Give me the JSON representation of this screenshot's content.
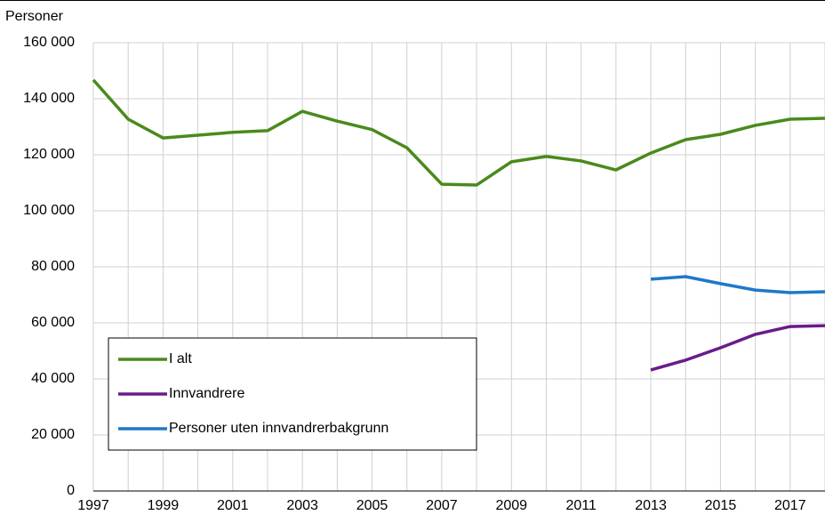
{
  "chart_data": {
    "type": "line",
    "y_axis_label": "Personer",
    "x": [
      1997,
      1998,
      1999,
      2000,
      2001,
      2002,
      2003,
      2004,
      2005,
      2006,
      2007,
      2008,
      2009,
      2010,
      2011,
      2012,
      2013,
      2014,
      2015,
      2016,
      2017,
      2018
    ],
    "series": [
      {
        "name": "I alt",
        "color": "#4a8a1c",
        "values": [
          146700,
          132700,
          126000,
          127000,
          128000,
          128600,
          135500,
          132000,
          129000,
          122500,
          109500,
          109200,
          117500,
          119400,
          117800,
          114600,
          120600,
          125400,
          127300,
          130500,
          132700,
          133000
        ]
      },
      {
        "name": "Innvandrere",
        "color": "#6a1b8a",
        "values": [
          null,
          null,
          null,
          null,
          null,
          null,
          null,
          null,
          null,
          null,
          null,
          null,
          null,
          null,
          null,
          null,
          43200,
          46700,
          51100,
          55900,
          58700,
          59000
        ]
      },
      {
        "name": "Personer uten innvandrerbakgrunn",
        "color": "#1f78c8",
        "values": [
          null,
          null,
          null,
          null,
          null,
          null,
          null,
          null,
          null,
          null,
          null,
          null,
          null,
          null,
          null,
          null,
          75600,
          76500,
          74000,
          71700,
          70800,
          71100
        ]
      }
    ],
    "xlim": [
      1997,
      2018
    ],
    "xticks": [
      1997,
      1999,
      2001,
      2003,
      2005,
      2007,
      2009,
      2011,
      2013,
      2015,
      2017
    ],
    "ylim": [
      0,
      160000
    ],
    "yticks": [
      0,
      {
        "value": 20000,
        "label": "20 000"
      },
      {
        "value": 40000,
        "label": "40 000"
      },
      {
        "value": 60000,
        "label": "60 000"
      },
      {
        "value": 80000,
        "label": "80 000"
      },
      {
        "value": 100000,
        "label": "100 000"
      },
      {
        "value": 120000,
        "label": "120 000"
      },
      {
        "value": 140000,
        "label": "140 000"
      },
      {
        "value": 160000,
        "label": "160 000"
      }
    ],
    "grid": true,
    "legend": "bottom-left"
  }
}
